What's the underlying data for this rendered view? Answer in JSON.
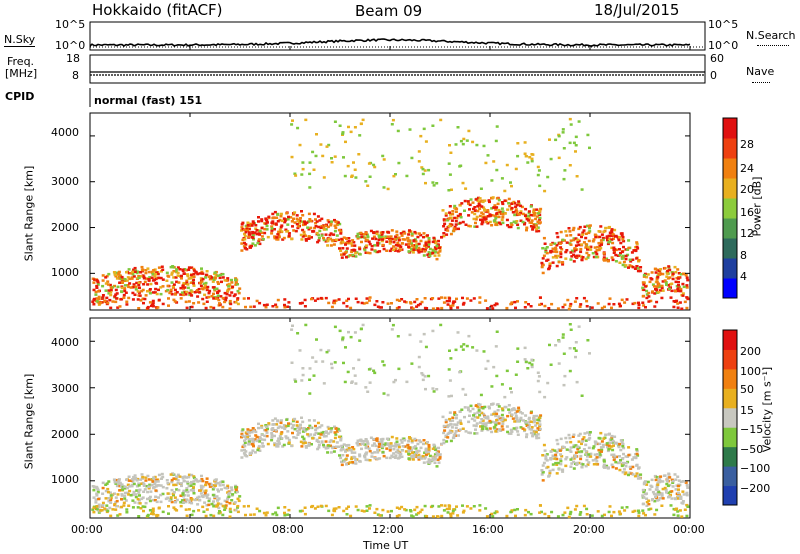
{
  "header": {
    "station": "Hokkaido (fitACF)",
    "beam": "Beam 09",
    "date": "18/Jul/2015"
  },
  "left_labels": {
    "nsky": "N.Sky",
    "freq": "Freq.",
    "freq_unit": "[MHz]",
    "cpid": "CPID"
  },
  "right_labels": {
    "nsearch": "N.Search",
    "nave": "Nave"
  },
  "cpid_text": "normal (fast) 151",
  "chart_data": [
    {
      "type": "line",
      "name": "noise-panel",
      "left_ticks": [
        "10^5",
        "10^0"
      ],
      "right_ticks": [
        "10^5",
        "10^0"
      ]
    },
    {
      "type": "line",
      "name": "freq-panel",
      "left_ticks": [
        "18",
        "8"
      ],
      "right_ticks": [
        "60",
        "0"
      ]
    },
    {
      "type": "heatmap",
      "name": "power",
      "ylabel": "Slant Range [km]",
      "yticks": [
        "4000",
        "3000",
        "2000",
        "1000"
      ],
      "ytick_values": [
        4000,
        3000,
        2000,
        1000
      ],
      "ylim": [
        200,
        4500
      ],
      "colorbar_label": "Power [dB]",
      "colorbar_ticks": [
        "28",
        "24",
        "20",
        "16",
        "12",
        "8",
        "4"
      ],
      "colorbar_colors": [
        "#0000ff",
        "#1f3f9f",
        "#2e6a5c",
        "#4f9b4f",
        "#8ccc3c",
        "#e8b020",
        "#f08010",
        "#ee4010",
        "#e01010"
      ],
      "bands": [
        {
          "t": [
            0,
            6
          ],
          "r": [
            300,
            1200
          ],
          "level": "high"
        },
        {
          "t": [
            6,
            10
          ],
          "r": [
            1500,
            2400
          ],
          "level": "high"
        },
        {
          "t": [
            10,
            14
          ],
          "r": [
            1300,
            2000
          ],
          "level": "high"
        },
        {
          "t": [
            14,
            18
          ],
          "r": [
            1800,
            2700
          ],
          "level": "high"
        },
        {
          "t": [
            18,
            22
          ],
          "r": [
            1000,
            2100
          ],
          "level": "high"
        },
        {
          "t": [
            22,
            24
          ],
          "r": [
            400,
            1200
          ],
          "level": "high"
        }
      ]
    },
    {
      "type": "heatmap",
      "name": "velocity",
      "ylabel": "Slant Range [km]",
      "yticks": [
        "4000",
        "3000",
        "2000",
        "1000"
      ],
      "ytick_values": [
        4000,
        3000,
        2000,
        1000
      ],
      "ylim": [
        200,
        4500
      ],
      "colorbar_label": "Velocity [m s⁻¹]",
      "colorbar_ticks": [
        "200",
        "100",
        "50",
        "15",
        "−15",
        "−50",
        "−100",
        "−200"
      ],
      "colorbar_colors": [
        "#2040b0",
        "#3a5fa0",
        "#2e7a4a",
        "#7ec83c",
        "#c8c8c0",
        "#e8b020",
        "#f08010",
        "#ee4010",
        "#e01010"
      ]
    }
  ],
  "xaxis": {
    "label": "Time UT",
    "ticks": [
      "00:00",
      "04:00",
      "08:00",
      "12:00",
      "16:00",
      "20:00",
      "00:00"
    ],
    "tick_hours": [
      0,
      4,
      8,
      12,
      16,
      20,
      24
    ]
  },
  "colors": {
    "red": "#e81808",
    "orange": "#f08010",
    "yellow": "#e8b020",
    "green": "#7ec83c",
    "gray": "#c4c4bc"
  }
}
